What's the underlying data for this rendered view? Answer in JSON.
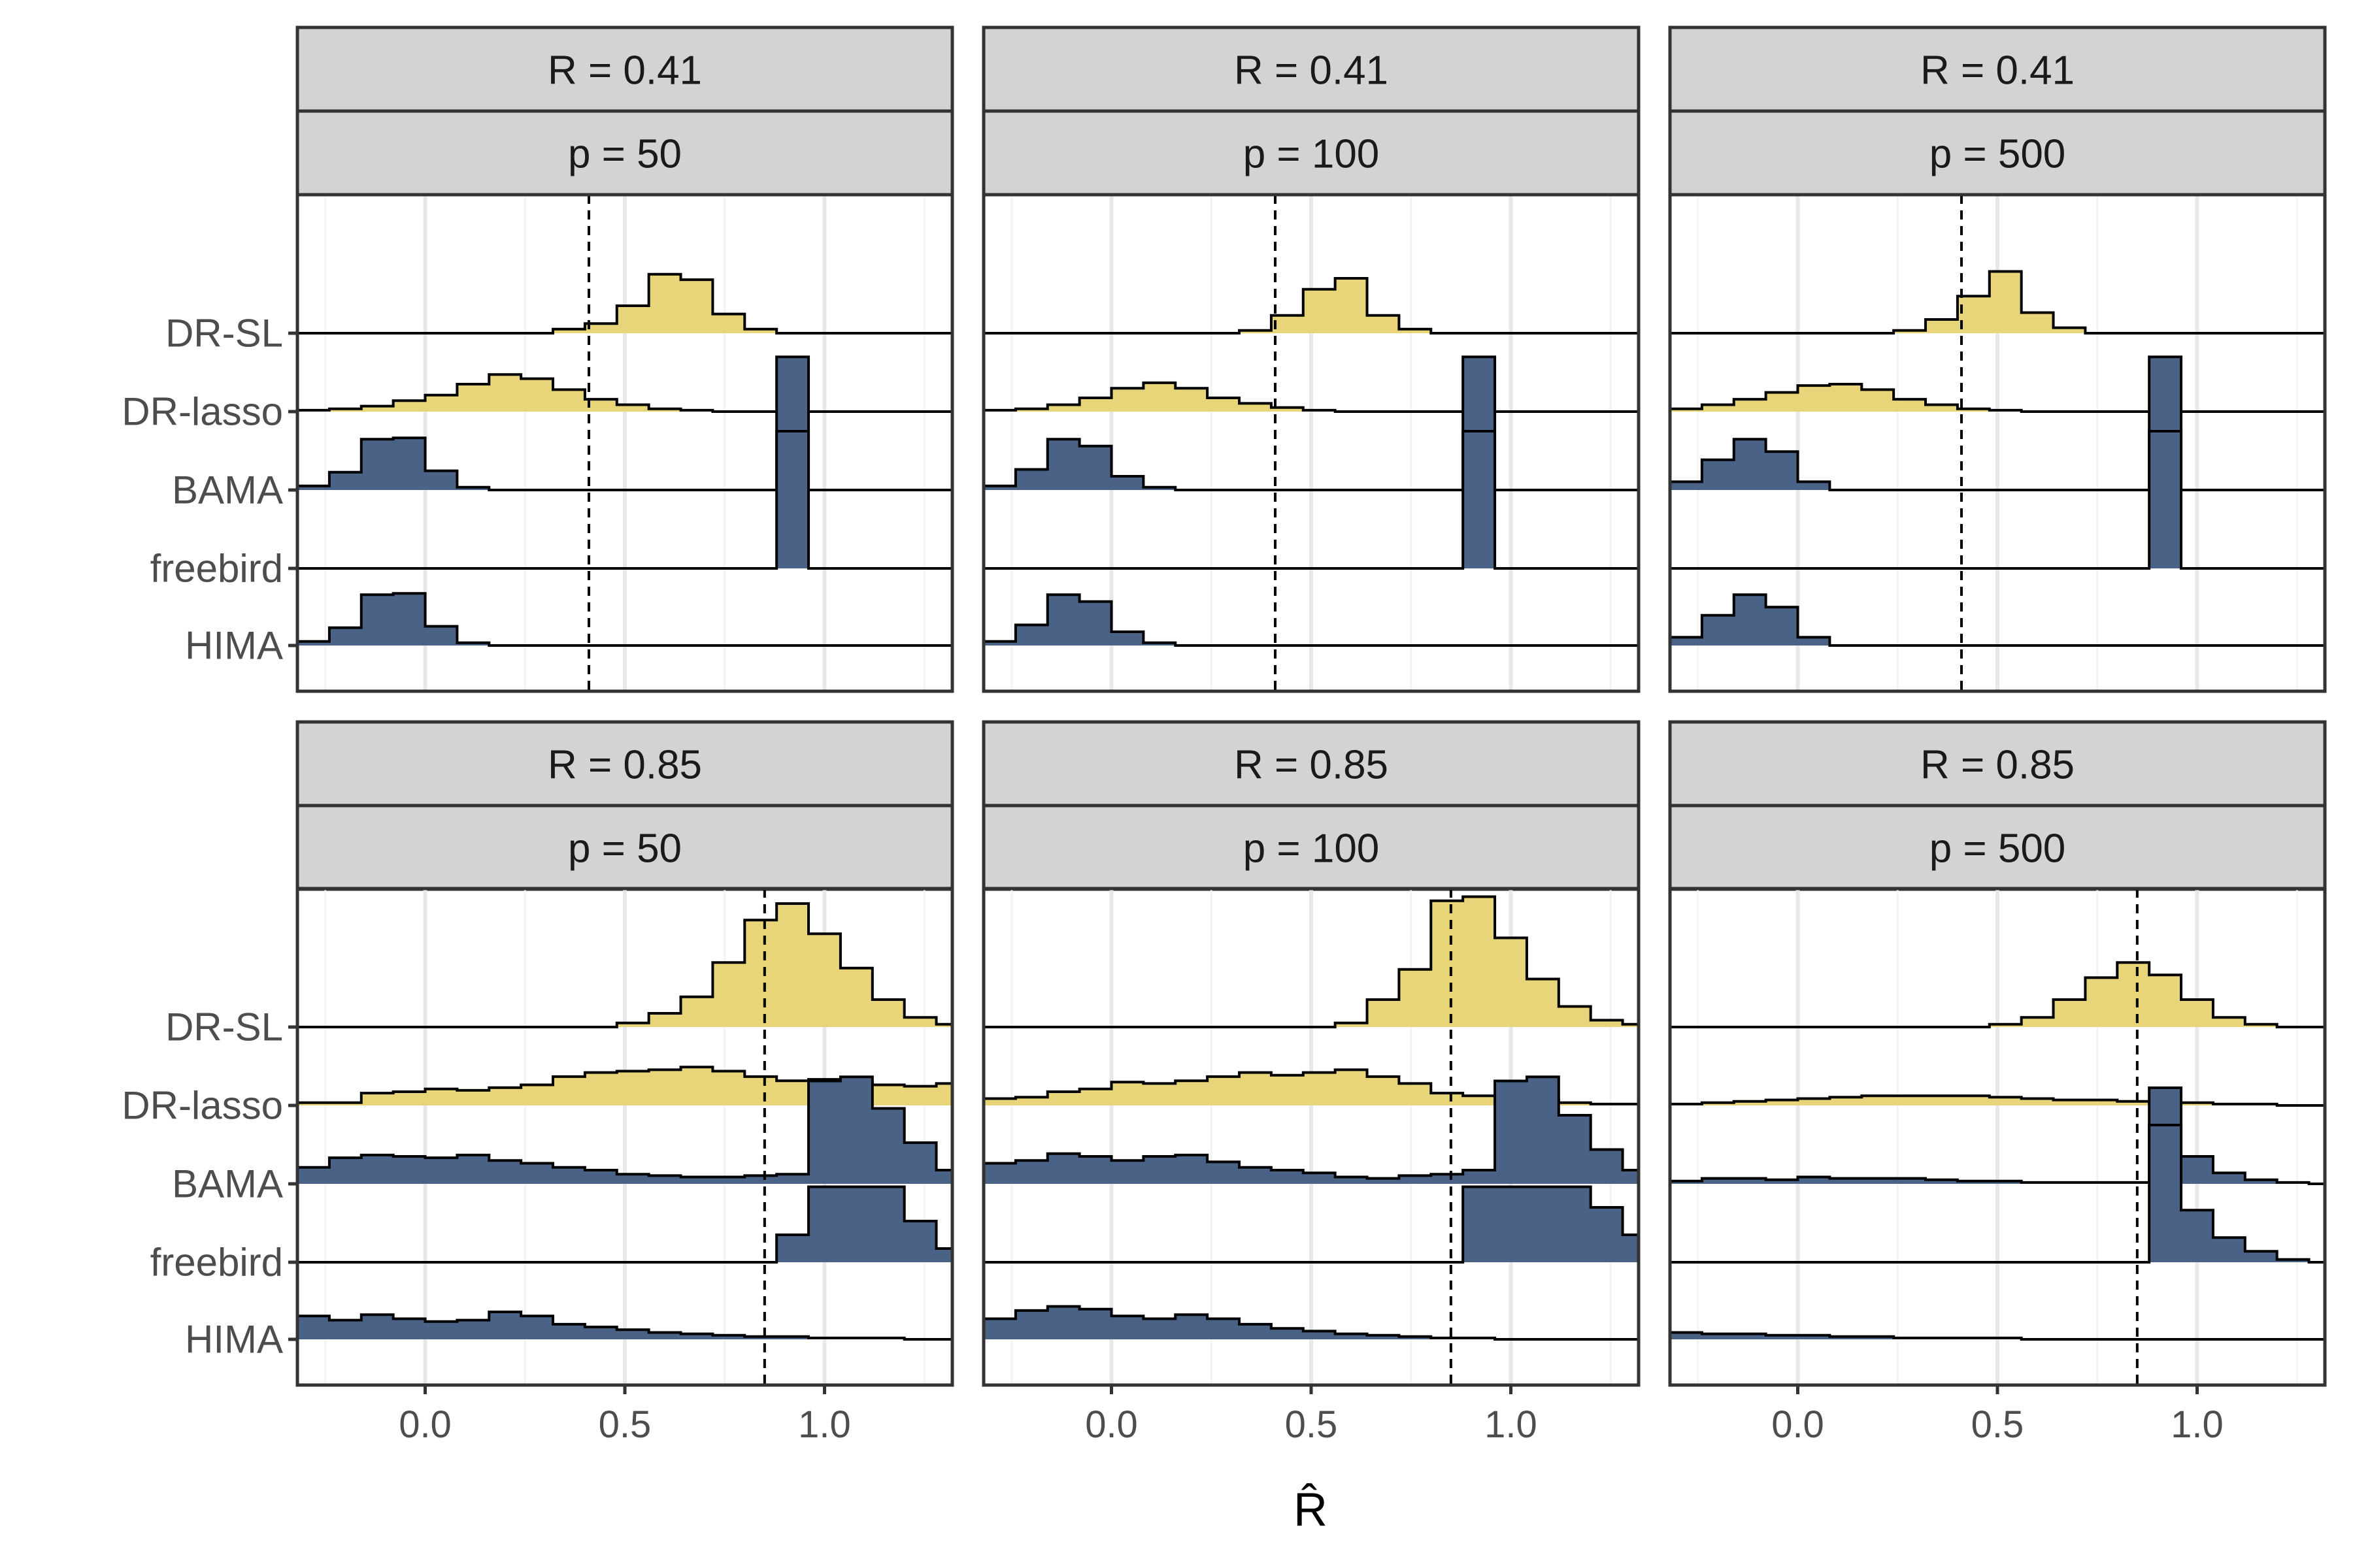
{
  "chart_data": {
    "type": "ridgeline-histogram",
    "xlabel": "R̂",
    "x_ticks": [
      "0.0",
      "0.5",
      "1.0"
    ],
    "x_tick_values": [
      0.0,
      0.5,
      1.0
    ],
    "xlim": [
      -0.32,
      1.32
    ],
    "methods": [
      "DR-SL",
      "DR-lasso",
      "BAMA",
      "freebird",
      "HIMA"
    ],
    "method_colors": {
      "DR-SL": "#e8d57a",
      "DR-lasso": "#e8d57a",
      "BAMA": "#4a6285",
      "freebird": "#4a6285",
      "HIMA": "#4a6285"
    },
    "bin_width": 0.08,
    "bin_start": -0.32,
    "panels": [
      {
        "strip_R": "R = 0.41",
        "strip_p": "p = 50",
        "true_R": 0.41,
        "series": {
          "DR-SL": [
            0,
            0,
            0,
            0,
            0,
            0,
            0,
            0,
            0.03,
            0.07,
            0.2,
            0.43,
            0.39,
            0.14,
            0.03,
            0,
            0,
            0,
            0,
            0,
            0
          ],
          "DR-lasso": [
            0.01,
            0.02,
            0.04,
            0.08,
            0.12,
            0.2,
            0.27,
            0.24,
            0.16,
            0.09,
            0.05,
            0.02,
            0.01,
            0,
            0,
            0,
            0,
            0,
            0,
            0,
            0
          ],
          "BAMA": [
            0.03,
            0.13,
            0.37,
            0.38,
            0.14,
            0.02,
            0,
            0,
            0,
            0,
            0,
            0,
            0,
            0,
            0,
            0.97,
            0,
            0,
            0,
            0,
            0
          ],
          "freebird": [
            0,
            0,
            0,
            0,
            0,
            0,
            0,
            0,
            0,
            0,
            0,
            0,
            0,
            0,
            0,
            1.0,
            0,
            0,
            0,
            0,
            0
          ],
          "HIMA": [
            0.03,
            0.13,
            0.37,
            0.38,
            0.14,
            0.02,
            0,
            0,
            0,
            0,
            0,
            0,
            0,
            0,
            0,
            0,
            0,
            0,
            0,
            0,
            0
          ]
        }
      },
      {
        "strip_R": "R = 0.41",
        "strip_p": "p = 100",
        "true_R": 0.41,
        "series": {
          "DR-SL": [
            0,
            0,
            0,
            0,
            0,
            0,
            0,
            0,
            0.02,
            0.13,
            0.32,
            0.4,
            0.13,
            0.03,
            0,
            0,
            0,
            0,
            0,
            0,
            0
          ],
          "DR-lasso": [
            0.01,
            0.02,
            0.05,
            0.1,
            0.17,
            0.21,
            0.17,
            0.1,
            0.06,
            0.03,
            0.01,
            0,
            0,
            0,
            0,
            0,
            0,
            0,
            0,
            0,
            0
          ],
          "BAMA": [
            0.03,
            0.15,
            0.37,
            0.32,
            0.1,
            0.02,
            0,
            0,
            0,
            0,
            0,
            0,
            0,
            0,
            0,
            0.97,
            0,
            0,
            0,
            0,
            0
          ],
          "freebird": [
            0,
            0,
            0,
            0,
            0,
            0,
            0,
            0,
            0,
            0,
            0,
            0,
            0,
            0,
            0,
            1.0,
            0,
            0,
            0,
            0,
            0
          ],
          "HIMA": [
            0.03,
            0.15,
            0.37,
            0.32,
            0.1,
            0.02,
            0,
            0,
            0,
            0,
            0,
            0,
            0,
            0,
            0,
            0,
            0,
            0,
            0,
            0,
            0
          ]
        }
      },
      {
        "strip_R": "R = 0.41",
        "strip_p": "p = 500",
        "true_R": 0.41,
        "series": {
          "DR-SL": [
            0,
            0,
            0,
            0,
            0,
            0,
            0,
            0.02,
            0.1,
            0.27,
            0.45,
            0.15,
            0.04,
            0,
            0,
            0,
            0,
            0,
            0,
            0,
            0
          ],
          "DR-lasso": [
            0.02,
            0.05,
            0.09,
            0.14,
            0.19,
            0.2,
            0.16,
            0.09,
            0.05,
            0.02,
            0.01,
            0,
            0,
            0,
            0,
            0,
            0,
            0,
            0,
            0,
            0
          ],
          "BAMA": [
            0.06,
            0.22,
            0.37,
            0.28,
            0.06,
            0,
            0,
            0,
            0,
            0,
            0,
            0,
            0,
            0,
            0,
            0.97,
            0,
            0,
            0,
            0,
            0
          ],
          "freebird": [
            0,
            0,
            0,
            0,
            0,
            0,
            0,
            0,
            0,
            0,
            0,
            0,
            0,
            0,
            0,
            1.0,
            0,
            0,
            0,
            0,
            0
          ],
          "HIMA": [
            0.06,
            0.22,
            0.37,
            0.28,
            0.06,
            0,
            0,
            0,
            0,
            0,
            0,
            0,
            0,
            0,
            0,
            0,
            0,
            0,
            0,
            0,
            0
          ]
        }
      },
      {
        "strip_R": "R = 0.85",
        "strip_p": "p = 50",
        "true_R": 0.85,
        "series": {
          "DR-SL": [
            0,
            0,
            0,
            0,
            0,
            0,
            0,
            0,
            0,
            0,
            0.03,
            0.1,
            0.22,
            0.47,
            0.78,
            0.9,
            0.68,
            0.43,
            0.2,
            0.07,
            0.02
          ],
          "DR-lasso": [
            0.02,
            0.02,
            0.09,
            0.1,
            0.12,
            0.11,
            0.13,
            0.15,
            0.21,
            0.24,
            0.25,
            0.26,
            0.28,
            0.25,
            0.21,
            0.18,
            0.19,
            0.17,
            0.15,
            0.14,
            0.16
          ],
          "BAMA": [
            0.12,
            0.19,
            0.21,
            0.2,
            0.19,
            0.21,
            0.17,
            0.15,
            0.12,
            0.1,
            0.07,
            0.06,
            0.05,
            0.05,
            0.06,
            0.07,
            0.75,
            0.78,
            0.55,
            0.3,
            0.1
          ],
          "freebird": [
            0,
            0,
            0,
            0,
            0,
            0,
            0,
            0,
            0,
            0,
            0,
            0,
            0,
            0,
            0,
            0.2,
            0.55,
            0.55,
            0.55,
            0.3,
            0.1
          ],
          "HIMA": [
            0.17,
            0.14,
            0.18,
            0.15,
            0.13,
            0.14,
            0.2,
            0.17,
            0.11,
            0.09,
            0.07,
            0.05,
            0.04,
            0.03,
            0.02,
            0.02,
            0.01,
            0.01,
            0.01,
            0,
            0
          ]
        }
      },
      {
        "strip_R": "R = 0.85",
        "strip_p": "p = 100",
        "true_R": 0.85,
        "series": {
          "DR-SL": [
            0,
            0,
            0,
            0,
            0,
            0,
            0,
            0,
            0,
            0,
            0,
            0.03,
            0.2,
            0.42,
            0.92,
            0.95,
            0.65,
            0.35,
            0.15,
            0.05,
            0.02
          ],
          "DR-lasso": [
            0.05,
            0.06,
            0.1,
            0.12,
            0.17,
            0.16,
            0.18,
            0.21,
            0.24,
            0.22,
            0.24,
            0.26,
            0.21,
            0.16,
            0.09,
            0.07,
            0.06,
            0.04,
            0.02,
            0.01,
            0.01
          ],
          "BAMA": [
            0.15,
            0.17,
            0.22,
            0.2,
            0.17,
            0.2,
            0.21,
            0.16,
            0.12,
            0.1,
            0.08,
            0.05,
            0.04,
            0.06,
            0.07,
            0.1,
            0.75,
            0.78,
            0.5,
            0.25,
            0.1
          ],
          "freebird": [
            0,
            0,
            0,
            0,
            0,
            0,
            0,
            0,
            0,
            0,
            0,
            0,
            0,
            0,
            0,
            0.55,
            0.55,
            0.55,
            0.55,
            0.4,
            0.2
          ],
          "HIMA": [
            0.15,
            0.21,
            0.24,
            0.22,
            0.17,
            0.15,
            0.18,
            0.15,
            0.11,
            0.08,
            0.06,
            0.04,
            0.03,
            0.02,
            0.01,
            0.01,
            0,
            0,
            0,
            0,
            0
          ]
        }
      },
      {
        "strip_R": "R = 0.85",
        "strip_p": "p = 500",
        "true_R": 0.85,
        "series": {
          "DR-SL": [
            0,
            0,
            0,
            0,
            0,
            0,
            0,
            0,
            0,
            0,
            0.02,
            0.07,
            0.2,
            0.36,
            0.47,
            0.38,
            0.2,
            0.07,
            0.02,
            0,
            0
          ],
          "DR-lasso": [
            0.01,
            0.02,
            0.03,
            0.04,
            0.05,
            0.06,
            0.07,
            0.07,
            0.07,
            0.07,
            0.06,
            0.05,
            0.04,
            0.04,
            0.03,
            0.02,
            0.02,
            0.01,
            0.01,
            0,
            0
          ],
          "BAMA": [
            0.02,
            0.04,
            0.04,
            0.03,
            0.05,
            0.04,
            0.04,
            0.04,
            0.03,
            0.02,
            0.02,
            0.01,
            0.01,
            0.01,
            0.01,
            0.7,
            0.2,
            0.08,
            0.03,
            0.01,
            0
          ],
          "freebird": [
            0,
            0,
            0,
            0,
            0,
            0,
            0,
            0,
            0,
            0,
            0,
            0,
            0,
            0,
            0,
            1.0,
            0.38,
            0.18,
            0.08,
            0.02,
            0
          ],
          "HIMA": [
            0.05,
            0.04,
            0.04,
            0.03,
            0.03,
            0.02,
            0.02,
            0.01,
            0.01,
            0.01,
            0.01,
            0,
            0,
            0,
            0,
            0,
            0,
            0,
            0,
            0,
            0
          ]
        }
      }
    ]
  }
}
